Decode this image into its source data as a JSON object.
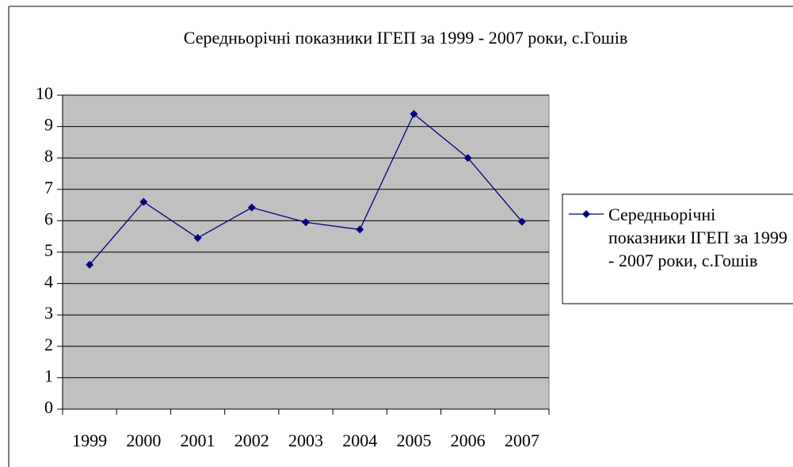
{
  "chart_data": {
    "type": "line",
    "title": "Середньорічні показники ІГЕП за 1999 - 2007 роки, с.Гошів",
    "categories": [
      "1999",
      "2000",
      "2001",
      "2002",
      "2003",
      "2004",
      "2005",
      "2006",
      "2007"
    ],
    "series": [
      {
        "name": "Середньорічні показники ІГЕП за 1999 - 2007 роки, с.Гошів",
        "color": "#000080",
        "values": [
          4.6,
          6.6,
          5.45,
          6.42,
          5.95,
          5.72,
          9.4,
          8.0,
          5.97
        ]
      }
    ],
    "ylim": [
      0,
      10
    ],
    "yticks": [
      0,
      1,
      2,
      3,
      4,
      5,
      6,
      7,
      8,
      9,
      10
    ],
    "grid": true,
    "legend": "right"
  }
}
